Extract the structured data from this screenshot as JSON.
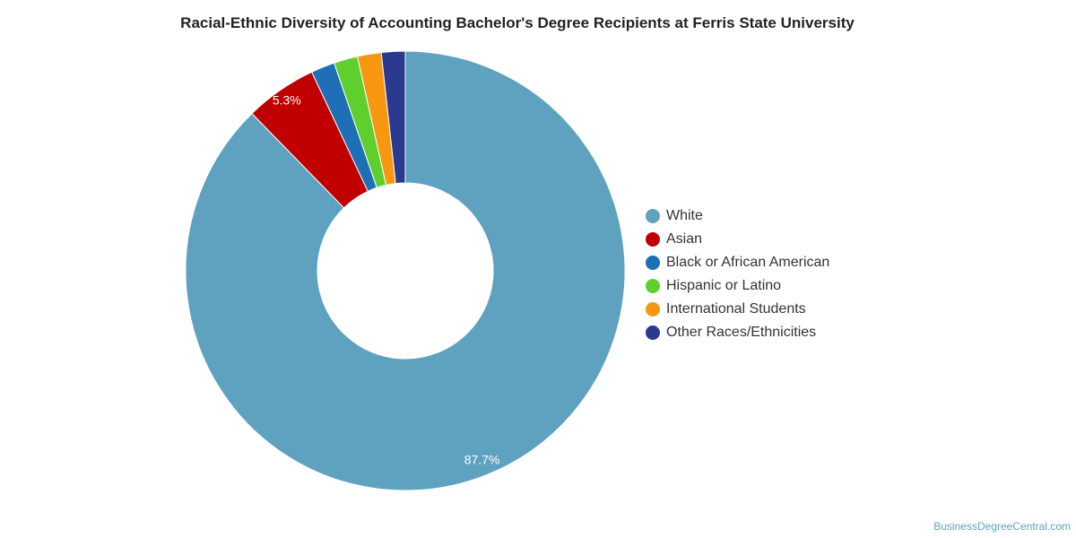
{
  "title": "Racial-Ethnic Diversity of Accounting Bachelor's Degree Recipients at Ferris State University",
  "credit": "BusinessDegreeCentral.com",
  "chart_data": {
    "type": "pie",
    "variant": "donut",
    "title": "Racial-Ethnic Diversity of Accounting Bachelor's Degree Recipients at Ferris State University",
    "legend_position": "right",
    "slices": [
      {
        "name": "White",
        "value": 87.7,
        "label": "87.7%",
        "color": "#5fa2c0"
      },
      {
        "name": "Asian",
        "value": 5.3,
        "label": "5.3%",
        "color": "#c00000"
      },
      {
        "name": "Black or African American",
        "value": 1.75,
        "label": "",
        "color": "#1f6fb6"
      },
      {
        "name": "Hispanic or Latino",
        "value": 1.75,
        "label": "",
        "color": "#5fcf2e"
      },
      {
        "name": "International Students",
        "value": 1.75,
        "label": "",
        "color": "#f7960f"
      },
      {
        "name": "Other Races/Ethnicities",
        "value": 1.75,
        "label": "",
        "color": "#2b3990"
      }
    ]
  }
}
